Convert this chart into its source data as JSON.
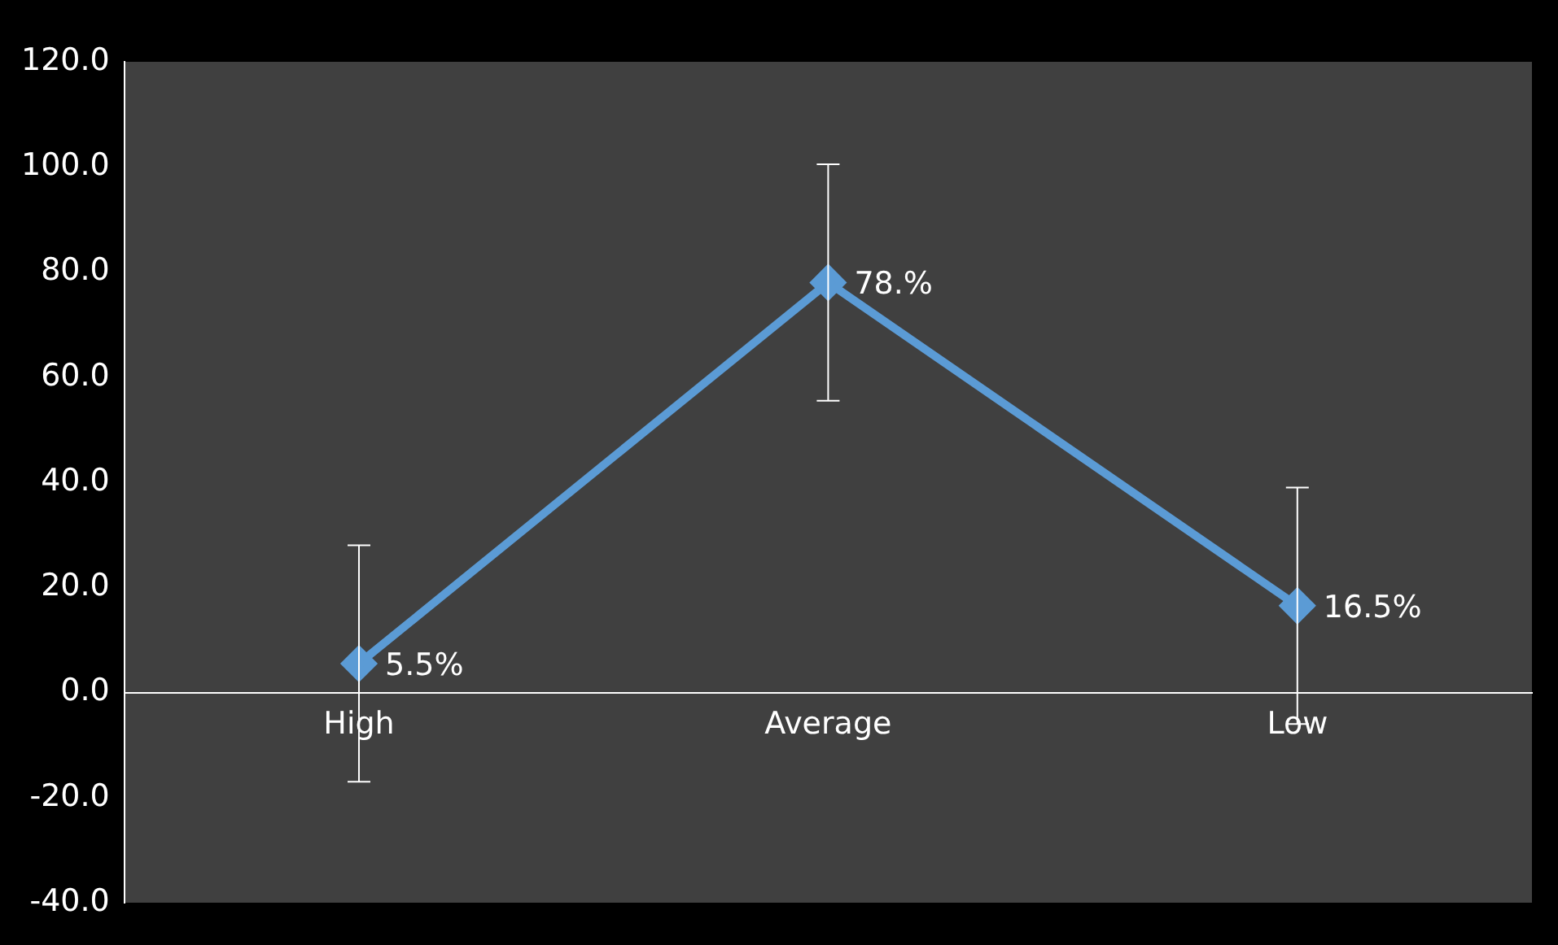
{
  "chart_data": {
    "type": "line",
    "categories": [
      "High",
      "Average",
      "Low"
    ],
    "series": [
      {
        "color": "#5b9bd5",
        "values": [
          5.5,
          78,
          16.5
        ],
        "errors": [
          22.5,
          22.5,
          22.5
        ],
        "value_labels": [
          "5.5%",
          "78.%",
          "16.5%"
        ]
      }
    ],
    "ylim": [
      -40,
      120
    ],
    "yticks": [
      {
        "value": -40,
        "label": "-40.0"
      },
      {
        "value": -20,
        "label": "-20.0"
      },
      {
        "value": 0,
        "label": "0.0"
      },
      {
        "value": 20,
        "label": "20.0"
      },
      {
        "value": 40,
        "label": "40.0"
      },
      {
        "value": 60,
        "label": "60.0"
      },
      {
        "value": 80,
        "label": "80.0"
      },
      {
        "value": 100,
        "label": "100.0"
      },
      {
        "value": 120,
        "label": "120.0"
      }
    ],
    "grid": false,
    "legend": false,
    "marker": "diamond",
    "line_style": "solid"
  }
}
